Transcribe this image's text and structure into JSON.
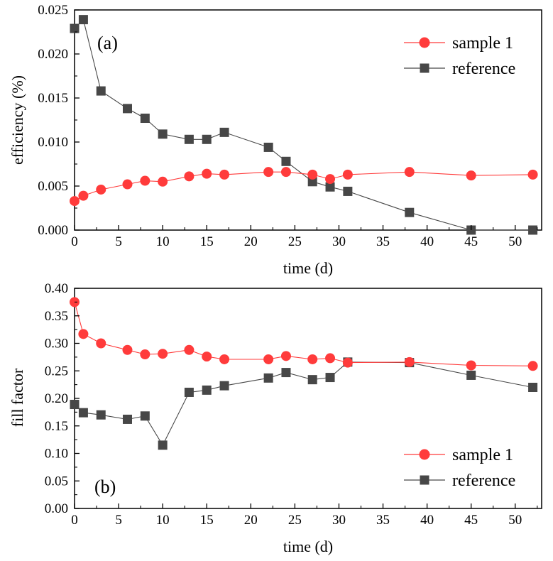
{
  "colors": {
    "sample": "#ff3b3b",
    "reference": "#474747",
    "axis": "#000000"
  },
  "chart_data": [
    {
      "type": "line",
      "panel_label": "(a)",
      "title": "",
      "xlabel": "time (d)",
      "ylabel": "efficiency (%)",
      "xlim": [
        0,
        53
      ],
      "ylim": [
        0,
        0.025
      ],
      "xticks": [
        0,
        5,
        10,
        15,
        20,
        25,
        30,
        35,
        40,
        45,
        50
      ],
      "xtick_labels": [
        "0",
        "5",
        "10",
        "15",
        "20",
        "25",
        "30",
        "35",
        "40",
        "45",
        "50"
      ],
      "yticks": [
        0,
        0.005,
        0.01,
        0.015,
        0.02,
        0.025
      ],
      "ytick_labels": [
        "0.000",
        "0.005",
        "0.010",
        "0.015",
        "0.020",
        "0.025"
      ],
      "legend_position": "top-right",
      "series": [
        {
          "name": "sample 1",
          "marker": "circle",
          "x": [
            0,
            1,
            3,
            6,
            8,
            10,
            13,
            15,
            17,
            22,
            24,
            27,
            29,
            31,
            38,
            45,
            52
          ],
          "values": [
            0.0033,
            0.0039,
            0.0046,
            0.0052,
            0.0056,
            0.0055,
            0.0061,
            0.0064,
            0.0063,
            0.0066,
            0.0066,
            0.0063,
            0.0058,
            0.0063,
            0.0066,
            0.0062,
            0.0063
          ]
        },
        {
          "name": "reference",
          "marker": "square",
          "x": [
            0,
            1,
            3,
            6,
            8,
            10,
            13,
            15,
            17,
            22,
            24,
            27,
            29,
            31,
            38,
            45,
            52
          ],
          "values": [
            0.0229,
            0.0239,
            0.0158,
            0.0138,
            0.0127,
            0.0109,
            0.0103,
            0.0103,
            0.0111,
            0.0094,
            0.0078,
            0.0055,
            0.0049,
            0.0044,
            0.002,
            0.0,
            0.0
          ]
        }
      ]
    },
    {
      "type": "line",
      "panel_label": "(b)",
      "title": "",
      "xlabel": "time (d)",
      "ylabel": "fill factor",
      "xlim": [
        0,
        53
      ],
      "ylim": [
        0,
        0.4
      ],
      "xticks": [
        0,
        5,
        10,
        15,
        20,
        25,
        30,
        35,
        40,
        45,
        50
      ],
      "xtick_labels": [
        "0",
        "5",
        "10",
        "15",
        "20",
        "25",
        "30",
        "35",
        "40",
        "45",
        "50"
      ],
      "yticks": [
        0,
        0.05,
        0.1,
        0.15,
        0.2,
        0.25,
        0.3,
        0.35,
        0.4
      ],
      "ytick_labels": [
        "0.00",
        "0.05",
        "0.10",
        "0.15",
        "0.20",
        "0.25",
        "0.30",
        "0.35",
        "0.40"
      ],
      "legend_position": "bottom-right",
      "series": [
        {
          "name": "sample 1",
          "marker": "circle",
          "x": [
            0,
            1,
            3,
            6,
            8,
            10,
            13,
            15,
            17,
            22,
            24,
            27,
            29,
            31,
            38,
            45,
            52
          ],
          "values": [
            0.375,
            0.317,
            0.3,
            0.288,
            0.28,
            0.281,
            0.288,
            0.276,
            0.271,
            0.271,
            0.277,
            0.271,
            0.273,
            0.265,
            0.266,
            0.26,
            0.259
          ]
        },
        {
          "name": "reference",
          "marker": "square",
          "x": [
            0,
            1,
            3,
            6,
            8,
            10,
            13,
            15,
            17,
            22,
            24,
            27,
            29,
            31,
            38,
            45,
            52
          ],
          "values": [
            0.189,
            0.174,
            0.17,
            0.162,
            0.168,
            0.115,
            0.211,
            0.215,
            0.223,
            0.237,
            0.247,
            0.234,
            0.238,
            0.266,
            0.265,
            0.242,
            0.22
          ]
        }
      ]
    }
  ]
}
